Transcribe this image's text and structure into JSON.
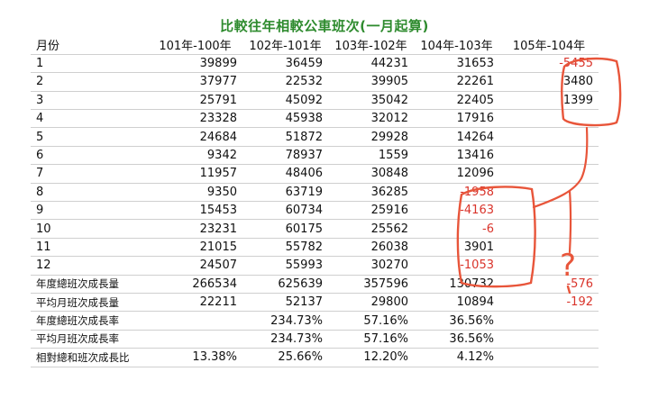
{
  "title": "比較往年相較公車班次(一月起算)",
  "headers": [
    "月份",
    "101年-100年",
    "102年-101年",
    "103年-102年",
    "104年-103年",
    "105年-104年"
  ],
  "rows": [
    {
      "label": "1",
      "values": [
        "39899",
        "36459",
        "44231",
        "31653",
        "-5455"
      ],
      "neg": [
        false,
        false,
        false,
        false,
        true
      ]
    },
    {
      "label": "2",
      "values": [
        "37977",
        "22532",
        "39905",
        "22261",
        "3480"
      ],
      "neg": [
        false,
        false,
        false,
        false,
        false
      ]
    },
    {
      "label": "3",
      "values": [
        "25791",
        "45092",
        "35042",
        "22405",
        "1399"
      ],
      "neg": [
        false,
        false,
        false,
        false,
        false
      ]
    },
    {
      "label": "4",
      "values": [
        "23328",
        "45938",
        "32012",
        "17916",
        ""
      ],
      "neg": [
        false,
        false,
        false,
        false,
        false
      ]
    },
    {
      "label": "5",
      "values": [
        "24684",
        "51872",
        "29928",
        "14264",
        ""
      ],
      "neg": [
        false,
        false,
        false,
        false,
        false
      ]
    },
    {
      "label": "6",
      "values": [
        "9342",
        "78937",
        "1559",
        "13416",
        ""
      ],
      "neg": [
        false,
        false,
        false,
        false,
        false
      ]
    },
    {
      "label": "7",
      "values": [
        "11957",
        "48406",
        "30848",
        "12096",
        ""
      ],
      "neg": [
        false,
        false,
        false,
        false,
        false
      ]
    },
    {
      "label": "8",
      "values": [
        "9350",
        "63719",
        "36285",
        "-1958",
        ""
      ],
      "neg": [
        false,
        false,
        false,
        true,
        false
      ]
    },
    {
      "label": "9",
      "values": [
        "15453",
        "60734",
        "25916",
        "-4163",
        ""
      ],
      "neg": [
        false,
        false,
        false,
        true,
        false
      ]
    },
    {
      "label": "10",
      "values": [
        "23231",
        "60175",
        "25562",
        "-6",
        ""
      ],
      "neg": [
        false,
        false,
        false,
        true,
        false
      ]
    },
    {
      "label": "11",
      "values": [
        "21015",
        "55782",
        "26038",
        "3901",
        ""
      ],
      "neg": [
        false,
        false,
        false,
        false,
        false
      ]
    },
    {
      "label": "12",
      "values": [
        "24507",
        "55993",
        "30270",
        "-1053",
        ""
      ],
      "neg": [
        false,
        false,
        false,
        true,
        false
      ]
    },
    {
      "label": "年度總班次成長量",
      "values": [
        "266534",
        "625639",
        "357596",
        "130732",
        "-576"
      ],
      "neg": [
        false,
        false,
        false,
        false,
        true
      ],
      "small": true
    },
    {
      "label": "平均月班次成長量",
      "values": [
        "22211",
        "52137",
        "29800",
        "10894",
        "-192"
      ],
      "neg": [
        false,
        false,
        false,
        false,
        true
      ],
      "small": true
    },
    {
      "label": "年度總班次成長率",
      "values": [
        "",
        "234.73%",
        "57.16%",
        "36.56%",
        ""
      ],
      "neg": [
        false,
        false,
        false,
        false,
        false
      ],
      "small": true
    },
    {
      "label": "平均月班次成長率",
      "values": [
        "",
        "234.73%",
        "57.16%",
        "36.56%",
        ""
      ],
      "neg": [
        false,
        false,
        false,
        false,
        false
      ],
      "small": true
    },
    {
      "label": "相對總和班次成長比",
      "values": [
        "13.38%",
        "25.66%",
        "12.20%",
        "4.12%",
        ""
      ],
      "neg": [
        false,
        false,
        false,
        false,
        false
      ],
      "small": true
    }
  ],
  "annotation": {
    "question_mark": "?",
    "color": "#e8553a"
  }
}
